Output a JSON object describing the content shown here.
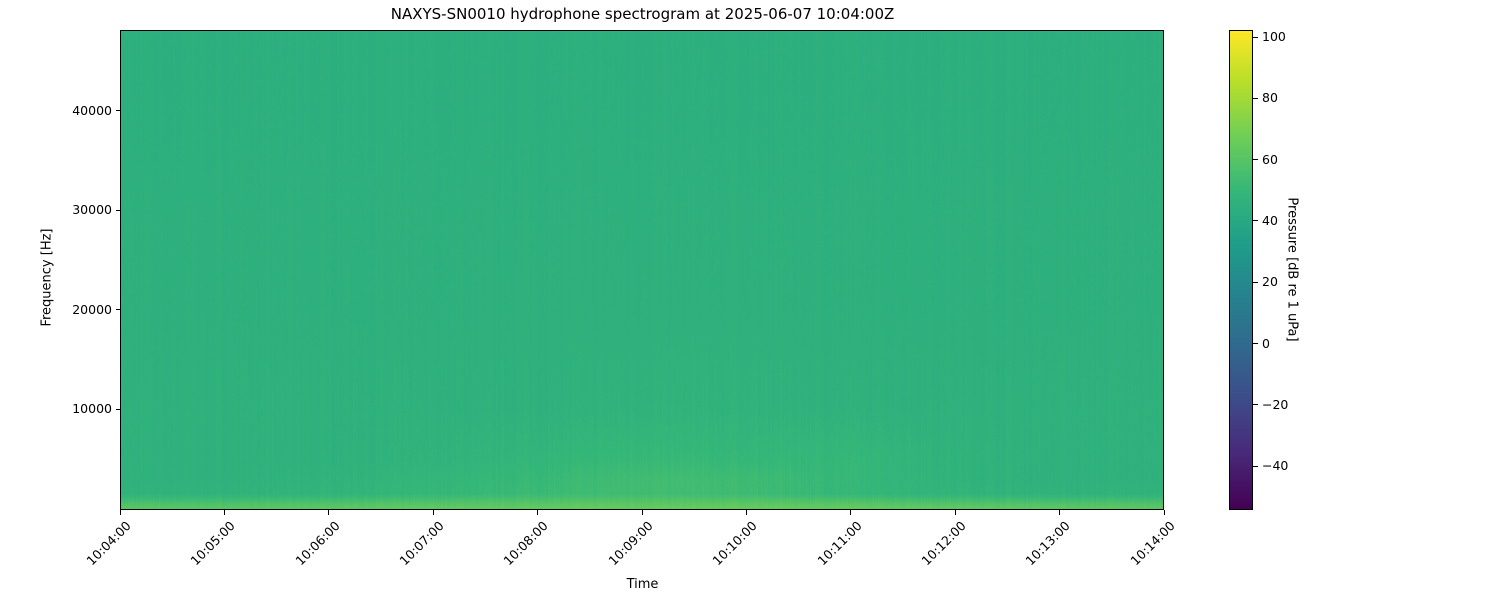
{
  "chart_data": {
    "type": "heatmap",
    "title": "NAXYS-SN0010 hydrophone spectrogram at 2025-06-07 10:04:00Z",
    "xlabel": "Time",
    "ylabel": "Frequency [Hz]",
    "colorbar_label": "Pressure [dB re 1 uPa]",
    "colormap": "viridis",
    "x_tick_labels": [
      "10:04:00",
      "10:05:00",
      "10:06:00",
      "10:07:00",
      "10:08:00",
      "10:09:00",
      "10:10:00",
      "10:11:00",
      "10:12:00",
      "10:13:00",
      "10:14:00"
    ],
    "xlim": [
      "10:04:00",
      "10:14:00"
    ],
    "y_ticks": [
      10000,
      20000,
      30000,
      40000
    ],
    "y_tick_labels": [
      "10000",
      "20000",
      "30000",
      "40000"
    ],
    "ylim": [
      0,
      48000
    ],
    "colorbar_ticks": [
      -40,
      -20,
      0,
      20,
      40,
      60,
      80,
      100
    ],
    "colorbar_tick_labels": [
      "−40",
      "−20",
      "0",
      "20",
      "40",
      "60",
      "80",
      "100"
    ],
    "clim": [
      -54,
      102
    ],
    "grid": false,
    "times": [
      "10:04:00",
      "10:05:00",
      "10:06:00",
      "10:07:00",
      "10:08:00",
      "10:09:00",
      "10:10:00",
      "10:11:00",
      "10:12:00",
      "10:13:00",
      "10:14:00"
    ],
    "frequencies": [
      250,
      1500,
      3000,
      5000,
      10000,
      20000,
      30000,
      40000,
      47000
    ],
    "values": [
      [
        60,
        60,
        61,
        62,
        63,
        64,
        64,
        63,
        62,
        61,
        61
      ],
      [
        47,
        47,
        48,
        50,
        52,
        54,
        53,
        50,
        48,
        47,
        47
      ],
      [
        46,
        46,
        47,
        49,
        51,
        54,
        53,
        50,
        47,
        46,
        46
      ],
      [
        46,
        46,
        46,
        47,
        49,
        51,
        50,
        50,
        47,
        46,
        46
      ],
      [
        46,
        46,
        46,
        46,
        46,
        47,
        47,
        46,
        46,
        46,
        46
      ],
      [
        45,
        45,
        45,
        45,
        45.5,
        45.5,
        45.5,
        45,
        45,
        45,
        45
      ],
      [
        45,
        45,
        45,
        45,
        45,
        45,
        45,
        45,
        45,
        45,
        45
      ],
      [
        44.5,
        44.5,
        44.5,
        44.5,
        44.5,
        44.5,
        44.5,
        44.5,
        44.5,
        44.5,
        44.5
      ],
      [
        44.5,
        44.5,
        44.5,
        44.5,
        44.5,
        44.5,
        44.5,
        44.5,
        44.5,
        44.5,
        44.5
      ]
    ]
  }
}
